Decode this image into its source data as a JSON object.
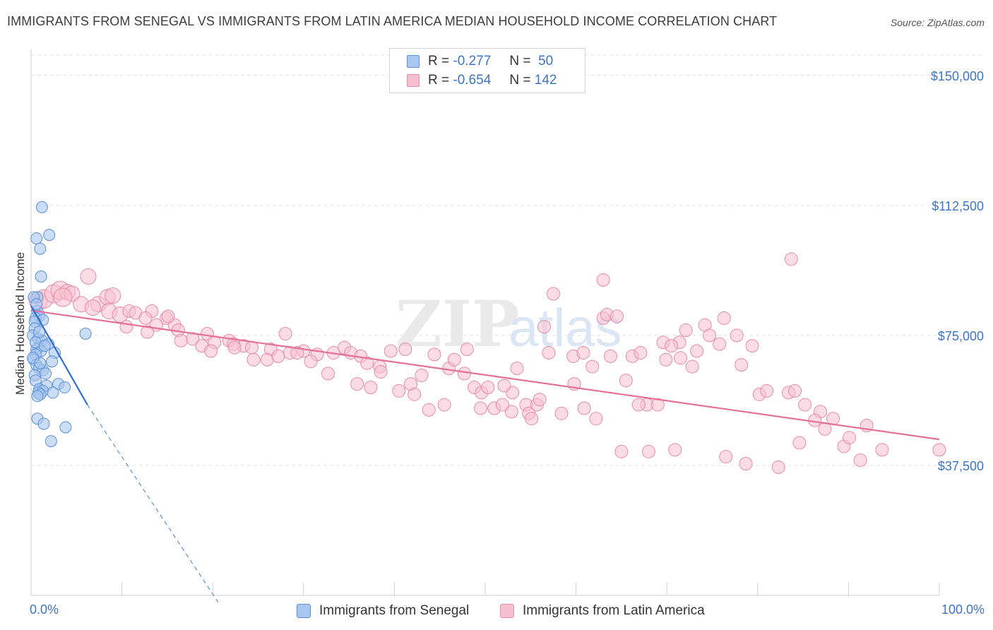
{
  "title": "IMMIGRANTS FROM SENEGAL VS IMMIGRANTS FROM LATIN AMERICA MEDIAN HOUSEHOLD INCOME CORRELATION CHART",
  "source": "Source: ZipAtlas.com",
  "watermark": {
    "main": "ZIP",
    "sub": "atlas"
  },
  "legend": {
    "r_label": "R =",
    "n_label": "N =",
    "senegal": {
      "r": "-0.277",
      "n": "50"
    },
    "latin": {
      "r": "-0.654",
      "n": "142"
    }
  },
  "colors": {
    "senegal_fill": "#a9c6ef",
    "senegal_stroke": "#5b8fd8",
    "senegal_line": "#2f6fd0",
    "latin_fill": "#f7c0d0",
    "latin_stroke": "#e88aa8",
    "latin_line": "#e4709a",
    "tick_text": "#3d74c6",
    "grid": "#e2e2e2"
  },
  "chart_data": {
    "type": "scatter",
    "title": "IMMIGRANTS FROM SENEGAL VS IMMIGRANTS FROM LATIN AMERICA MEDIAN HOUSEHOLD INCOME CORRELATION CHART",
    "xlabel": "",
    "ylabel": "Median Household Income",
    "xlim": [
      0,
      100
    ],
    "ylim": [
      0,
      157500
    ],
    "x_tick_labels": [
      "0.0%",
      "100.0%"
    ],
    "y_ticks": [
      {
        "value": 37500,
        "label": "$37,500"
      },
      {
        "value": 75000,
        "label": "$75,000"
      },
      {
        "value": 112500,
        "label": "$112,500"
      },
      {
        "value": 150000,
        "label": "$150,000"
      }
    ],
    "series": [
      {
        "name": "Immigrants from Senegal",
        "r": -0.277,
        "n": 50,
        "trend": {
          "x0": 0.0,
          "y0": 83500,
          "x_solid_end": 6.2,
          "y_solid_end": 55000,
          "x_dash_end": 20.6,
          "y_dash_end": -2000
        },
        "points": [
          [
            1.2,
            112000
          ],
          [
            2.0,
            104000
          ],
          [
            0.6,
            103000
          ],
          [
            1.0,
            100000
          ],
          [
            1.1,
            92000
          ],
          [
            0.7,
            86000
          ],
          [
            0.7,
            82000
          ],
          [
            0.9,
            80500
          ],
          [
            0.5,
            80000
          ],
          [
            1.3,
            79500
          ],
          [
            0.4,
            79000
          ],
          [
            0.4,
            77000
          ],
          [
            0.2,
            75000
          ],
          [
            6.0,
            75500
          ],
          [
            0.8,
            74000
          ],
          [
            1.2,
            73500
          ],
          [
            1.9,
            72500
          ],
          [
            0.8,
            71500
          ],
          [
            0.6,
            71000
          ],
          [
            1.1,
            70500
          ],
          [
            2.6,
            70000
          ],
          [
            0.5,
            69500
          ],
          [
            0.3,
            68000
          ],
          [
            2.3,
            67500
          ],
          [
            0.6,
            66500
          ],
          [
            0.9,
            65500
          ],
          [
            1.3,
            65000
          ],
          [
            1.6,
            64000
          ],
          [
            0.4,
            63500
          ],
          [
            0.5,
            62000
          ],
          [
            3.0,
            61000
          ],
          [
            1.7,
            60500
          ],
          [
            3.7,
            60000
          ],
          [
            0.9,
            59500
          ],
          [
            1.3,
            59000
          ],
          [
            0.8,
            58500
          ],
          [
            2.4,
            58500
          ],
          [
            1.0,
            58000
          ],
          [
            0.7,
            57500
          ],
          [
            0.7,
            51000
          ],
          [
            1.4,
            49500
          ],
          [
            3.8,
            48500
          ],
          [
            2.2,
            44500
          ],
          [
            0.3,
            86000
          ],
          [
            0.6,
            84000
          ],
          [
            0.9,
            76000
          ],
          [
            0.5,
            73000
          ],
          [
            1.5,
            72000
          ],
          [
            0.2,
            68500
          ],
          [
            1.0,
            67000
          ]
        ]
      },
      {
        "name": "Immigrants from Latin America",
        "r": -0.654,
        "n": 142,
        "trend": {
          "x0": 0.0,
          "y0": 82200,
          "x1": 100.0,
          "y1": 45000
        },
        "points": [
          [
            0.8,
            85000
          ],
          [
            1.4,
            85500
          ],
          [
            2.5,
            87000
          ],
          [
            3.2,
            88000
          ],
          [
            4.0,
            87500
          ],
          [
            4.5,
            87000
          ],
          [
            6.3,
            92000
          ],
          [
            3.5,
            86000
          ],
          [
            5.5,
            84000
          ],
          [
            7.4,
            84000
          ],
          [
            8.4,
            86000
          ],
          [
            9.0,
            86500
          ],
          [
            6.8,
            83000
          ],
          [
            8.6,
            82000
          ],
          [
            9.8,
            81000
          ],
          [
            10.8,
            82000
          ],
          [
            11.5,
            81500
          ],
          [
            13.3,
            82000
          ],
          [
            12.6,
            80000
          ],
          [
            14.9,
            80000
          ],
          [
            13.8,
            78000
          ],
          [
            15.8,
            78000
          ],
          [
            16.2,
            76500
          ],
          [
            10.5,
            77500
          ],
          [
            12.8,
            76000
          ],
          [
            17.8,
            74000
          ],
          [
            19.4,
            75500
          ],
          [
            20.2,
            73000
          ],
          [
            21.8,
            73500
          ],
          [
            23.4,
            72000
          ],
          [
            22.3,
            72500
          ],
          [
            18.8,
            72000
          ],
          [
            24.3,
            71500
          ],
          [
            26.4,
            71000
          ],
          [
            26.0,
            68000
          ],
          [
            28.5,
            70000
          ],
          [
            30.0,
            70500
          ],
          [
            27.2,
            69000
          ],
          [
            31.5,
            69500
          ],
          [
            24.5,
            68000
          ],
          [
            30.8,
            67500
          ],
          [
            34.5,
            71500
          ],
          [
            33.3,
            70000
          ],
          [
            35.2,
            70000
          ],
          [
            36.3,
            69000
          ],
          [
            37.0,
            67000
          ],
          [
            39.6,
            70500
          ],
          [
            41.2,
            71000
          ],
          [
            38.4,
            66000
          ],
          [
            44.4,
            69500
          ],
          [
            46.0,
            65500
          ],
          [
            47.7,
            64000
          ],
          [
            48.8,
            60000
          ],
          [
            45.5,
            55000
          ],
          [
            40.5,
            59000
          ],
          [
            41.8,
            61000
          ],
          [
            43.0,
            63500
          ],
          [
            49.6,
            58500
          ],
          [
            49.5,
            54000
          ],
          [
            51.0,
            54000
          ],
          [
            52.9,
            53000
          ],
          [
            51.9,
            55000
          ],
          [
            53.0,
            58500
          ],
          [
            54.5,
            55000
          ],
          [
            54.8,
            52500
          ],
          [
            55.7,
            55000
          ],
          [
            56.5,
            77500
          ],
          [
            57.0,
            70000
          ],
          [
            59.7,
            69000
          ],
          [
            60.8,
            70000
          ],
          [
            61.8,
            66000
          ],
          [
            63.0,
            80000
          ],
          [
            63.4,
            81000
          ],
          [
            64.5,
            80500
          ],
          [
            65.5,
            62000
          ],
          [
            66.2,
            69000
          ],
          [
            67.1,
            70000
          ],
          [
            67.8,
            55000
          ],
          [
            69.0,
            55000
          ],
          [
            69.6,
            73000
          ],
          [
            71.4,
            73000
          ],
          [
            71.5,
            68500
          ],
          [
            72.8,
            66000
          ],
          [
            74.2,
            78000
          ],
          [
            74.7,
            75000
          ],
          [
            76.3,
            80000
          ],
          [
            77.7,
            75000
          ],
          [
            79.4,
            72000
          ],
          [
            80.2,
            58000
          ],
          [
            81.0,
            59000
          ],
          [
            83.4,
            58500
          ],
          [
            84.1,
            59000
          ],
          [
            85.2,
            55000
          ],
          [
            86.9,
            53000
          ],
          [
            87.4,
            48000
          ],
          [
            88.3,
            51000
          ],
          [
            89.5,
            43000
          ],
          [
            91.3,
            39000
          ],
          [
            93.7,
            42000
          ],
          [
            70.9,
            42000
          ],
          [
            68.0,
            41500
          ],
          [
            65.0,
            41500
          ],
          [
            76.5,
            40000
          ],
          [
            78.7,
            38000
          ],
          [
            82.3,
            37000
          ],
          [
            57.5,
            87000
          ],
          [
            63.0,
            91000
          ],
          [
            83.7,
            97000
          ],
          [
            100,
            42000
          ],
          [
            19.8,
            70500
          ],
          [
            16.5,
            73500
          ],
          [
            15.1,
            80500
          ],
          [
            22.4,
            71500
          ],
          [
            28.0,
            75500
          ],
          [
            29.3,
            70000
          ],
          [
            32.7,
            64000
          ],
          [
            35.9,
            61000
          ],
          [
            37.4,
            60000
          ],
          [
            38.5,
            64500
          ],
          [
            42.2,
            58000
          ],
          [
            43.8,
            53500
          ],
          [
            46.6,
            68000
          ],
          [
            48.0,
            71000
          ],
          [
            50.3,
            60000
          ],
          [
            52.1,
            60500
          ],
          [
            53.5,
            65500
          ],
          [
            55.1,
            51000
          ],
          [
            56.0,
            56500
          ],
          [
            58.4,
            52500
          ],
          [
            59.8,
            61000
          ],
          [
            60.9,
            54000
          ],
          [
            62.2,
            51000
          ],
          [
            63.8,
            69000
          ],
          [
            66.9,
            55000
          ],
          [
            69.9,
            68000
          ],
          [
            70.5,
            72000
          ],
          [
            72.1,
            76500
          ],
          [
            73.3,
            70500
          ],
          [
            75.8,
            72500
          ],
          [
            78.2,
            66500
          ],
          [
            84.6,
            44000
          ],
          [
            86.3,
            50500
          ],
          [
            90.1,
            45500
          ],
          [
            92.0,
            49000
          ]
        ]
      }
    ]
  },
  "bottom_legend": {
    "senegal_label": "Immigrants from Senegal",
    "latin_label": "Immigrants from Latin America"
  }
}
